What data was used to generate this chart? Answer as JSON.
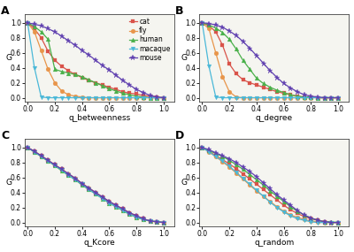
{
  "species": [
    "cat",
    "fly",
    "human",
    "macaque",
    "mouse"
  ],
  "colors": [
    "#d9534a",
    "#e8954a",
    "#4ab04a",
    "#4ab8d8",
    "#6040b0"
  ],
  "markers": [
    "s",
    "o",
    "^",
    "v",
    "*"
  ],
  "markersize": [
    3.5,
    3.5,
    3.5,
    3.5,
    5
  ],
  "betweenness": {
    "cat": [
      [
        0,
        0.05,
        0.1,
        0.15,
        0.2,
        0.25,
        0.3,
        0.35,
        0.4,
        0.45,
        0.5,
        0.55,
        0.6,
        0.65,
        0.7,
        0.75,
        0.8,
        0.85,
        0.9,
        0.95,
        1.0
      ],
      [
        1.0,
        0.92,
        0.8,
        0.62,
        0.5,
        0.42,
        0.36,
        0.31,
        0.27,
        0.23,
        0.2,
        0.17,
        0.14,
        0.11,
        0.08,
        0.06,
        0.05,
        0.03,
        0.02,
        0.01,
        0.0
      ]
    ],
    "fly": [
      [
        0,
        0.05,
        0.1,
        0.15,
        0.2,
        0.25,
        0.3,
        0.35,
        0.4,
        0.45,
        0.5,
        0.55,
        0.6,
        0.65,
        0.7,
        0.75,
        0.8,
        0.85,
        0.9,
        0.95,
        1.0
      ],
      [
        1.0,
        0.88,
        0.63,
        0.38,
        0.2,
        0.09,
        0.04,
        0.02,
        0.01,
        0.0,
        0.0,
        0.0,
        0.0,
        0.0,
        0.0,
        0.0,
        0.0,
        0.0,
        0.0,
        0.0,
        0.0
      ]
    ],
    "human": [
      [
        0,
        0.05,
        0.1,
        0.15,
        0.2,
        0.25,
        0.3,
        0.35,
        0.4,
        0.45,
        0.5,
        0.55,
        0.6,
        0.65,
        0.7,
        0.75,
        0.8,
        0.85,
        0.9,
        0.95,
        1.0
      ],
      [
        1.0,
        0.95,
        0.88,
        0.78,
        0.38,
        0.35,
        0.33,
        0.31,
        0.28,
        0.24,
        0.2,
        0.16,
        0.12,
        0.09,
        0.06,
        0.04,
        0.02,
        0.01,
        0.0,
        0.0,
        0.0
      ]
    ],
    "macaque": [
      [
        0,
        0.05,
        0.1,
        0.15,
        0.2,
        0.25,
        0.3,
        0.35,
        0.4,
        0.45,
        0.5,
        0.55,
        0.6,
        0.65,
        0.7,
        0.75,
        0.8,
        0.85,
        0.9,
        0.95,
        1.0
      ],
      [
        1.0,
        0.4,
        0.01,
        0.0,
        0.0,
        0.0,
        0.0,
        0.0,
        0.0,
        0.0,
        0.0,
        0.0,
        0.0,
        0.0,
        0.0,
        0.0,
        0.0,
        0.0,
        0.0,
        0.0,
        0.0
      ]
    ],
    "mouse": [
      [
        0,
        0.05,
        0.1,
        0.15,
        0.2,
        0.25,
        0.3,
        0.35,
        0.4,
        0.45,
        0.5,
        0.55,
        0.6,
        0.65,
        0.7,
        0.75,
        0.8,
        0.85,
        0.9,
        0.95,
        1.0
      ],
      [
        1.0,
        0.98,
        0.96,
        0.92,
        0.88,
        0.82,
        0.76,
        0.7,
        0.63,
        0.57,
        0.5,
        0.43,
        0.37,
        0.3,
        0.23,
        0.17,
        0.11,
        0.07,
        0.03,
        0.01,
        0.0
      ]
    ]
  },
  "degree": {
    "cat": [
      [
        0,
        0.05,
        0.1,
        0.15,
        0.2,
        0.25,
        0.3,
        0.35,
        0.4,
        0.45,
        0.5,
        0.55,
        0.6,
        0.65,
        0.7,
        0.75,
        0.8,
        0.85,
        0.9,
        0.95,
        1.0
      ],
      [
        1.0,
        0.96,
        0.88,
        0.7,
        0.45,
        0.32,
        0.24,
        0.2,
        0.17,
        0.14,
        0.11,
        0.08,
        0.06,
        0.04,
        0.02,
        0.01,
        0.01,
        0.0,
        0.0,
        0.0,
        0.0
      ]
    ],
    "fly": [
      [
        0,
        0.05,
        0.1,
        0.15,
        0.2,
        0.25,
        0.3,
        0.35,
        0.4,
        0.45,
        0.5,
        0.55,
        0.6,
        0.65,
        0.7,
        0.75,
        0.8,
        0.85,
        0.9,
        0.95,
        1.0
      ],
      [
        1.0,
        0.92,
        0.6,
        0.28,
        0.08,
        0.01,
        0.0,
        0.0,
        0.0,
        0.0,
        0.0,
        0.0,
        0.0,
        0.0,
        0.0,
        0.0,
        0.0,
        0.0,
        0.0,
        0.0,
        0.0
      ]
    ],
    "human": [
      [
        0,
        0.05,
        0.1,
        0.15,
        0.2,
        0.25,
        0.3,
        0.35,
        0.4,
        0.45,
        0.5,
        0.55,
        0.6,
        0.65,
        0.7,
        0.75,
        0.8,
        0.85,
        0.9,
        0.95,
        1.0
      ],
      [
        1.0,
        0.97,
        0.93,
        0.87,
        0.78,
        0.65,
        0.5,
        0.38,
        0.26,
        0.19,
        0.14,
        0.1,
        0.07,
        0.04,
        0.02,
        0.01,
        0.01,
        0.0,
        0.0,
        0.0,
        0.0
      ]
    ],
    "macaque": [
      [
        0,
        0.05,
        0.1,
        0.15,
        0.2,
        0.25,
        0.3,
        0.35,
        0.4,
        0.45,
        0.5,
        0.55,
        0.6,
        0.65,
        0.7,
        0.75,
        0.8,
        0.85,
        0.9,
        0.95,
        1.0
      ],
      [
        1.0,
        0.42,
        0.01,
        0.0,
        0.0,
        0.0,
        0.0,
        0.0,
        0.0,
        0.0,
        0.0,
        0.0,
        0.0,
        0.0,
        0.0,
        0.0,
        0.0,
        0.0,
        0.0,
        0.0,
        0.0
      ]
    ],
    "mouse": [
      [
        0,
        0.05,
        0.1,
        0.15,
        0.2,
        0.25,
        0.3,
        0.35,
        0.4,
        0.45,
        0.5,
        0.55,
        0.6,
        0.65,
        0.7,
        0.75,
        0.8,
        0.85,
        0.9,
        0.95,
        1.0
      ],
      [
        1.0,
        0.99,
        0.97,
        0.94,
        0.89,
        0.83,
        0.75,
        0.66,
        0.56,
        0.46,
        0.36,
        0.27,
        0.19,
        0.13,
        0.08,
        0.04,
        0.02,
        0.01,
        0.0,
        0.0,
        0.0
      ]
    ]
  },
  "kcore": {
    "cat": [
      [
        0,
        0.05,
        0.1,
        0.15,
        0.2,
        0.25,
        0.3,
        0.35,
        0.4,
        0.45,
        0.5,
        0.55,
        0.6,
        0.65,
        0.7,
        0.75,
        0.8,
        0.85,
        0.9,
        0.95,
        1.0
      ],
      [
        1.0,
        0.95,
        0.89,
        0.83,
        0.77,
        0.71,
        0.65,
        0.59,
        0.52,
        0.46,
        0.4,
        0.34,
        0.28,
        0.23,
        0.18,
        0.13,
        0.09,
        0.05,
        0.02,
        0.01,
        0.0
      ]
    ],
    "fly": [
      [
        0,
        0.05,
        0.1,
        0.15,
        0.2,
        0.25,
        0.3,
        0.35,
        0.4,
        0.45,
        0.5,
        0.55,
        0.6,
        0.65,
        0.7,
        0.75,
        0.8,
        0.85,
        0.9,
        0.95,
        1.0
      ],
      [
        1.0,
        0.94,
        0.88,
        0.82,
        0.76,
        0.7,
        0.64,
        0.58,
        0.51,
        0.45,
        0.39,
        0.33,
        0.27,
        0.21,
        0.16,
        0.11,
        0.07,
        0.04,
        0.02,
        0.01,
        0.0
      ]
    ],
    "human": [
      [
        0,
        0.05,
        0.1,
        0.15,
        0.2,
        0.25,
        0.3,
        0.35,
        0.4,
        0.45,
        0.5,
        0.55,
        0.6,
        0.65,
        0.7,
        0.75,
        0.8,
        0.85,
        0.9,
        0.95,
        1.0
      ],
      [
        1.0,
        0.94,
        0.88,
        0.82,
        0.76,
        0.69,
        0.63,
        0.57,
        0.5,
        0.44,
        0.38,
        0.32,
        0.26,
        0.21,
        0.16,
        0.11,
        0.07,
        0.04,
        0.02,
        0.01,
        0.0
      ]
    ],
    "macaque": [
      [
        0,
        0.05,
        0.1,
        0.15,
        0.2,
        0.25,
        0.3,
        0.35,
        0.4,
        0.45,
        0.5,
        0.55,
        0.6,
        0.65,
        0.7,
        0.75,
        0.8,
        0.85,
        0.9,
        0.95,
        1.0
      ],
      [
        1.0,
        0.94,
        0.88,
        0.82,
        0.76,
        0.7,
        0.63,
        0.57,
        0.51,
        0.44,
        0.38,
        0.32,
        0.26,
        0.21,
        0.16,
        0.11,
        0.07,
        0.04,
        0.02,
        0.01,
        0.0
      ]
    ],
    "mouse": [
      [
        0,
        0.05,
        0.1,
        0.15,
        0.2,
        0.25,
        0.3,
        0.35,
        0.4,
        0.45,
        0.5,
        0.55,
        0.6,
        0.65,
        0.7,
        0.75,
        0.8,
        0.85,
        0.9,
        0.95,
        1.0
      ],
      [
        1.0,
        0.95,
        0.89,
        0.83,
        0.77,
        0.71,
        0.65,
        0.59,
        0.52,
        0.46,
        0.4,
        0.34,
        0.28,
        0.23,
        0.18,
        0.13,
        0.09,
        0.05,
        0.02,
        0.01,
        0.0
      ]
    ]
  },
  "random": {
    "cat": [
      [
        0,
        0.05,
        0.1,
        0.15,
        0.2,
        0.25,
        0.3,
        0.35,
        0.4,
        0.45,
        0.5,
        0.55,
        0.6,
        0.65,
        0.7,
        0.75,
        0.8,
        0.85,
        0.9,
        0.95,
        1.0
      ],
      [
        1.0,
        0.95,
        0.89,
        0.84,
        0.78,
        0.72,
        0.65,
        0.58,
        0.51,
        0.44,
        0.37,
        0.3,
        0.23,
        0.17,
        0.12,
        0.08,
        0.05,
        0.03,
        0.01,
        0.0,
        0.0
      ]
    ],
    "fly": [
      [
        0,
        0.05,
        0.1,
        0.15,
        0.2,
        0.25,
        0.3,
        0.35,
        0.4,
        0.45,
        0.5,
        0.55,
        0.6,
        0.65,
        0.7,
        0.75,
        0.8,
        0.85,
        0.9,
        0.95,
        1.0
      ],
      [
        1.0,
        0.94,
        0.88,
        0.81,
        0.74,
        0.66,
        0.58,
        0.5,
        0.42,
        0.35,
        0.28,
        0.21,
        0.15,
        0.1,
        0.07,
        0.04,
        0.02,
        0.01,
        0.0,
        0.0,
        0.0
      ]
    ],
    "human": [
      [
        0,
        0.05,
        0.1,
        0.15,
        0.2,
        0.25,
        0.3,
        0.35,
        0.4,
        0.45,
        0.5,
        0.55,
        0.6,
        0.65,
        0.7,
        0.75,
        0.8,
        0.85,
        0.9,
        0.95,
        1.0
      ],
      [
        1.0,
        0.96,
        0.92,
        0.88,
        0.83,
        0.77,
        0.71,
        0.64,
        0.57,
        0.5,
        0.42,
        0.35,
        0.28,
        0.21,
        0.15,
        0.1,
        0.06,
        0.03,
        0.01,
        0.01,
        0.0
      ]
    ],
    "macaque": [
      [
        0,
        0.05,
        0.1,
        0.15,
        0.2,
        0.25,
        0.3,
        0.35,
        0.4,
        0.45,
        0.5,
        0.55,
        0.6,
        0.65,
        0.7,
        0.75,
        0.8,
        0.85,
        0.9,
        0.95,
        1.0
      ],
      [
        1.0,
        0.94,
        0.88,
        0.82,
        0.75,
        0.67,
        0.59,
        0.51,
        0.43,
        0.35,
        0.27,
        0.2,
        0.14,
        0.09,
        0.05,
        0.03,
        0.01,
        0.0,
        0.0,
        0.0,
        0.0
      ]
    ],
    "mouse": [
      [
        0,
        0.05,
        0.1,
        0.15,
        0.2,
        0.25,
        0.3,
        0.35,
        0.4,
        0.45,
        0.5,
        0.55,
        0.6,
        0.65,
        0.7,
        0.75,
        0.8,
        0.85,
        0.9,
        0.95,
        1.0
      ],
      [
        1.0,
        0.97,
        0.93,
        0.89,
        0.85,
        0.8,
        0.74,
        0.68,
        0.61,
        0.53,
        0.45,
        0.37,
        0.3,
        0.23,
        0.16,
        0.1,
        0.06,
        0.03,
        0.01,
        0.0,
        0.0
      ]
    ]
  },
  "xlabels": [
    "q_betweenness",
    "q_degree",
    "q_Kcore",
    "q_random"
  ],
  "panel_labels": [
    "A",
    "B",
    "C",
    "D"
  ],
  "ylabel": "G",
  "bg_color": "#ffffff",
  "plot_bg": "#f5f5f0",
  "legend_fontsize": 5.5,
  "axis_fontsize": 6.5,
  "tick_fontsize": 5.5,
  "panel_label_fontsize": 9
}
